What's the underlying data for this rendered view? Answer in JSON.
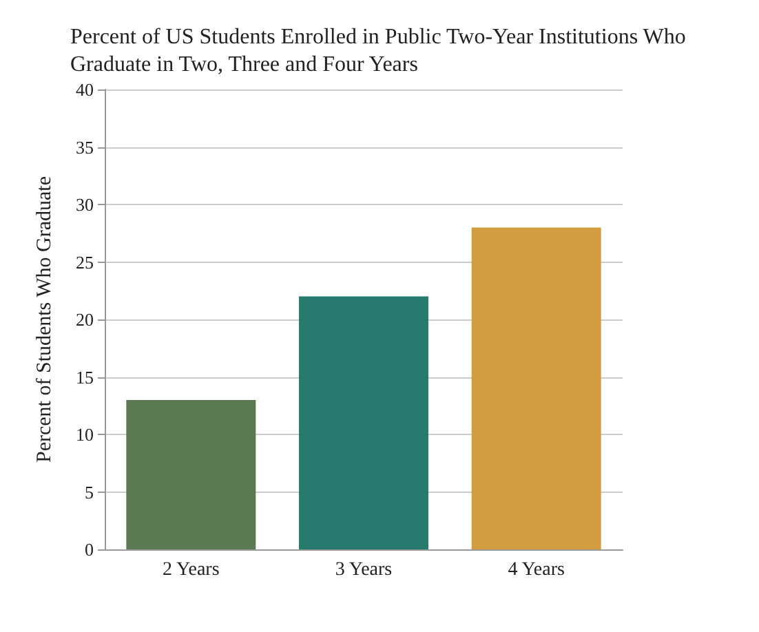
{
  "chart_data": {
    "type": "bar",
    "title": "Percent of US Students Enrolled in Public Two-Year Institutions Who Graduate in Two, Three and Four Years",
    "ylabel": "Percent of Students Who Graduate",
    "categories": [
      "2 Years",
      "3 Years",
      "4 Years"
    ],
    "values": [
      13,
      22,
      28
    ],
    "colors": [
      "#5b7a53",
      "#277a6e",
      "#d39c3f"
    ],
    "ylim": [
      0,
      40
    ],
    "yticks": [
      0,
      5,
      10,
      15,
      20,
      25,
      30,
      35,
      40
    ],
    "grid": "y"
  }
}
